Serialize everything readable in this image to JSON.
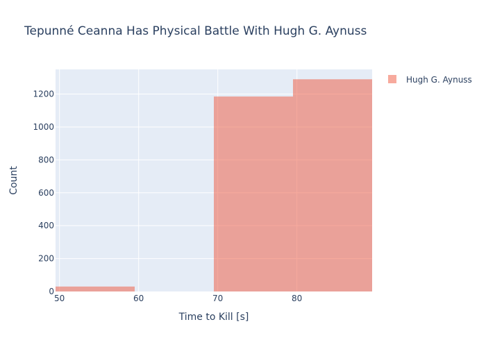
{
  "chart_data": {
    "type": "bar",
    "title": "Tepunné Ceanna Has Physical Battle With Hugh G. Aynuss",
    "xlabel": "Time to Kill [s]",
    "ylabel": "Count",
    "xlim": [
      49.5,
      89.5
    ],
    "ylim": [
      0,
      1350
    ],
    "x_ticks": [
      50,
      60,
      70,
      80
    ],
    "y_ticks": [
      0,
      200,
      400,
      600,
      800,
      1000,
      1200
    ],
    "grid": true,
    "legend_position": "top-right",
    "series": [
      {
        "name": "Hugh G. Aynuss",
        "color": "#EF553B",
        "bins": [
          {
            "start": 49.5,
            "end": 59.5,
            "count": 30
          },
          {
            "start": 59.5,
            "end": 69.5,
            "count": 0
          },
          {
            "start": 69.5,
            "end": 79.5,
            "count": 1185
          },
          {
            "start": 79.5,
            "end": 89.5,
            "count": 1290
          }
        ]
      }
    ]
  },
  "colors": {
    "plot_background": "#E5ECF6",
    "gridline": "#ffffff",
    "text": "#2a3f5f",
    "bar_opacity": 0.5
  }
}
